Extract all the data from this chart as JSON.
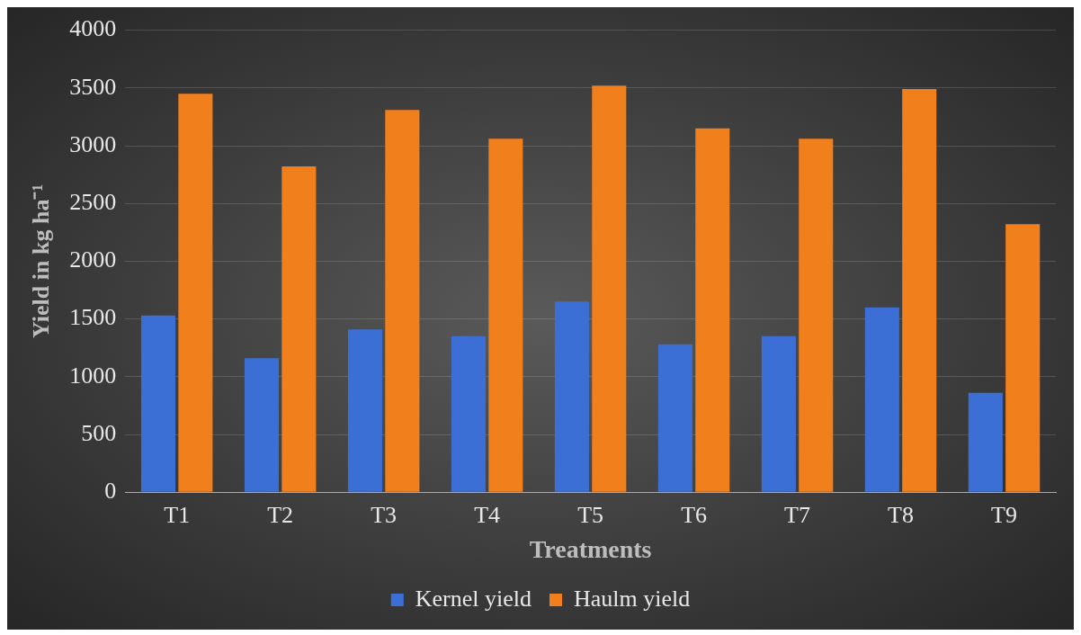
{
  "chart_data": {
    "type": "bar",
    "xlabel": "Treatments",
    "ylabel": "Yield in kg ha⁻¹",
    "categories": [
      "T1",
      "T2",
      "T3",
      "T4",
      "T5",
      "T6",
      "T7",
      "T8",
      "T9"
    ],
    "series": [
      {
        "name": "Kernel yield",
        "color": "#3b6fd6",
        "values": [
          1530,
          1160,
          1410,
          1350,
          1650,
          1280,
          1350,
          1600,
          860
        ]
      },
      {
        "name": "Haulm yield",
        "color": "#f07f1c",
        "values": [
          3450,
          2820,
          3310,
          3060,
          3520,
          3150,
          3060,
          3490,
          2320
        ]
      }
    ],
    "ylim": [
      0,
      4000
    ],
    "yticks": [
      0,
      500,
      1000,
      1500,
      2000,
      2500,
      3000,
      3500,
      4000
    ],
    "grid": "y",
    "legend": "bottom"
  }
}
